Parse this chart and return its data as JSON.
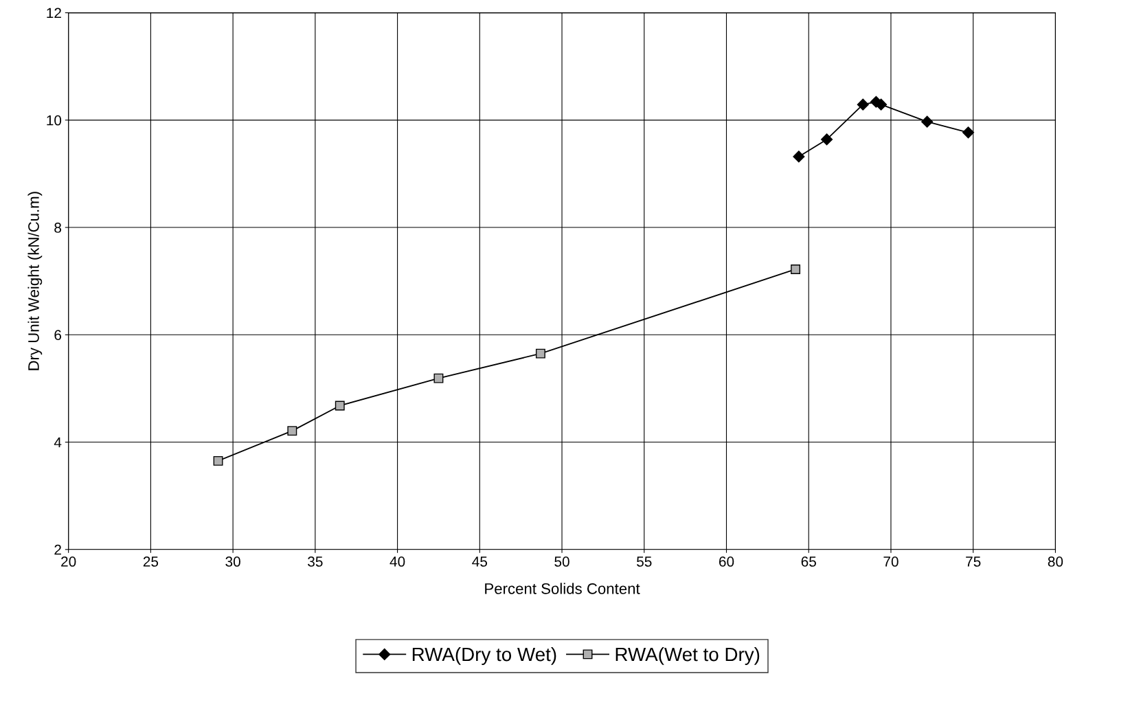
{
  "chart_data": {
    "type": "line",
    "xlabel": "Percent Solids Content",
    "ylabel": "Dry Unit Weight (kN/Cu.m)",
    "xlim": [
      20,
      80
    ],
    "xticks": [
      20,
      25,
      30,
      35,
      40,
      45,
      50,
      55,
      60,
      65,
      70,
      75,
      80
    ],
    "ylim": [
      2,
      12
    ],
    "yticks": [
      2,
      4,
      6,
      8,
      10,
      12
    ],
    "grid": true,
    "legend": "bottom",
    "series": [
      {
        "name": "RWA(Dry to Wet)",
        "color": "#000000",
        "marker": "diamond",
        "x": [
          64.4,
          66.1,
          68.3,
          69.1,
          69.4,
          72.2,
          74.7
        ],
        "values": [
          9.32,
          9.64,
          10.29,
          10.34,
          10.29,
          9.97,
          9.77
        ]
      },
      {
        "name": "RWA(Wet to Dry)",
        "color": "#000000",
        "marker": "square",
        "x": [
          29.1,
          33.6,
          36.5,
          42.5,
          48.7,
          64.2
        ],
        "values": [
          3.65,
          4.21,
          4.68,
          5.19,
          5.65,
          7.22
        ]
      }
    ]
  }
}
